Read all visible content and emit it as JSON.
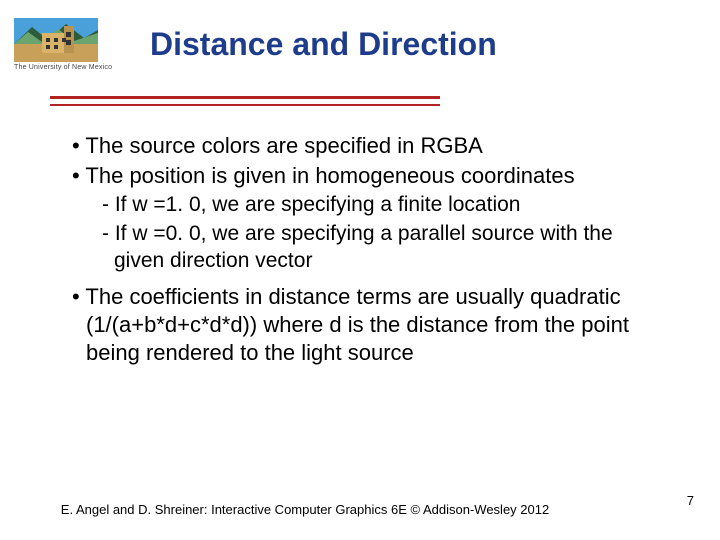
{
  "logo": {
    "caption": "The University of New Mexico",
    "colors": {
      "sky": "#4aa0d8",
      "mountain_dark": "#2e5c3a",
      "mountain_light": "#6aa56f",
      "ground": "#c9a05a",
      "building": "#d9b36a",
      "building_dark": "#b8924f",
      "window": "#333333"
    }
  },
  "title": "Distance and Direction",
  "rule_color": "#b22222",
  "title_color": "#1e3c8c",
  "bullets": [
    {
      "level": 1,
      "marker": "•",
      "text": "The source colors are specified in RGBA"
    },
    {
      "level": 1,
      "marker": "•",
      "text": "The position is given in homogeneous coordinates"
    },
    {
      "level": 2,
      "marker": "-",
      "text": "If w =1. 0, we are specifying a finite location"
    },
    {
      "level": 2,
      "marker": "-",
      "text": "If w =0. 0, we are specifying a parallel source with the given direction vector"
    },
    {
      "level": 1,
      "marker": "•",
      "text": "The coefficients in distance terms are usually quadratic (1/(a+b*d+c*d*d))  where d is the distance from the point being rendered to the light source"
    }
  ],
  "footer": "E. Angel and D. Shreiner: Interactive Computer Graphics 6E © Addison-Wesley 2012",
  "page_number": "7"
}
